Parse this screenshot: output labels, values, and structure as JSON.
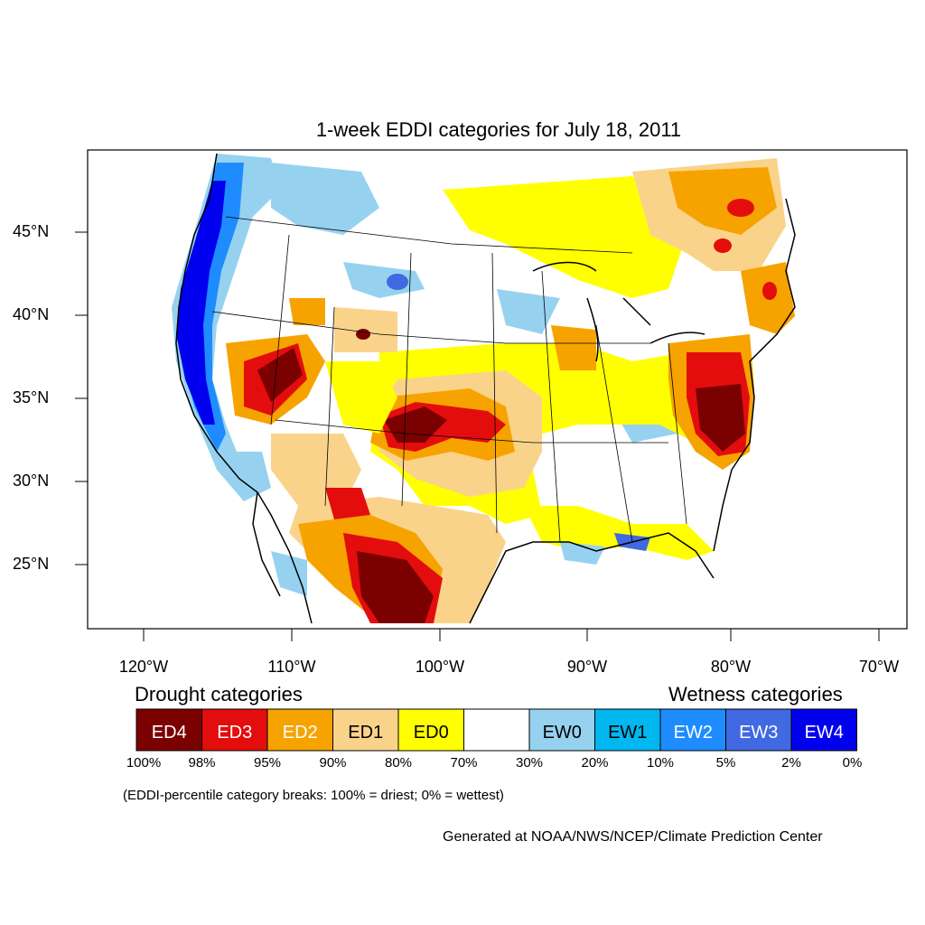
{
  "title": "1-week EDDI categories for July 18, 2011",
  "lat_ticks": [
    "45°N",
    "40°N",
    "35°N",
    "30°N",
    "25°N"
  ],
  "lon_ticks": [
    "120°W",
    "110°W",
    "100°W",
    "90°W",
    "80°W",
    "70°W"
  ],
  "legend": {
    "drought_heading": "Drought categories",
    "wetness_heading": "Wetness categories",
    "categories": [
      {
        "label": "ED4",
        "color": "#7b0000",
        "text_color": "#ffffff"
      },
      {
        "label": "ED3",
        "color": "#e30d0d",
        "text_color": "#ffffff"
      },
      {
        "label": "ED2",
        "color": "#f6a300",
        "text_color": "#ffffff"
      },
      {
        "label": "ED1",
        "color": "#fad38b",
        "text_color": "#000000"
      },
      {
        "label": "ED0",
        "color": "#ffff00",
        "text_color": "#000000"
      },
      {
        "label": "",
        "color": "#ffffff",
        "text_color": "#000000"
      },
      {
        "label": "EW0",
        "color": "#96d2f0",
        "text_color": "#000000"
      },
      {
        "label": "EW1",
        "color": "#00b7f0",
        "text_color": "#000000"
      },
      {
        "label": "EW2",
        "color": "#1e8cff",
        "text_color": "#ffffff"
      },
      {
        "label": "EW3",
        "color": "#4169e1",
        "text_color": "#ffffff"
      },
      {
        "label": "EW4",
        "color": "#0000ee",
        "text_color": "#ffffff"
      }
    ],
    "percentiles": [
      "100%",
      "98%",
      "95%",
      "90%",
      "80%",
      "70%",
      "30%",
      "20%",
      "10%",
      "5%",
      "2%",
      "0%"
    ]
  },
  "note": "(EDDI-percentile category breaks: 100% = driest; 0% = wettest)",
  "credit": "Generated at NOAA/NWS/NCEP/Climate Prediction Center"
}
